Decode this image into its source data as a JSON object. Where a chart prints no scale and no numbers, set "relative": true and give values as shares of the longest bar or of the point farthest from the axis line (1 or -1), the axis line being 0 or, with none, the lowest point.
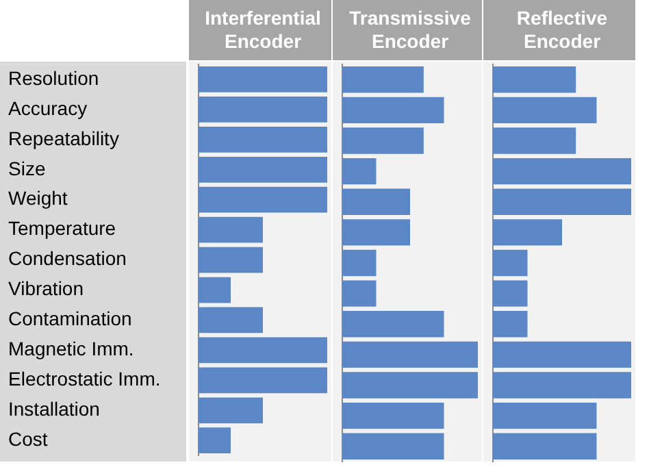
{
  "chart_data": [
    {
      "type": "bar",
      "orientation": "horizontal",
      "relative": true,
      "tick_labels": "y",
      "title": "Interferential Encoder",
      "color": "#5b87c6",
      "categories": [
        "Resolution",
        "Accuracy",
        "Repeatability",
        "Size",
        "Weight",
        "Temperature",
        "Condensation",
        "Vibration",
        "Contamination",
        "Magnetic Imm.",
        "Electrostatic Imm.",
        "Installation",
        "Cost"
      ],
      "values": [
        1,
        1,
        1,
        1,
        1,
        0.5,
        0.5,
        0.25,
        0.5,
        1,
        1,
        0.5,
        0.25
      ]
    },
    {
      "type": "bar",
      "orientation": "horizontal",
      "relative": true,
      "tick_labels": false,
      "title": "Transmissive Encoder",
      "color": "#5b87c6",
      "categories": [
        null,
        null,
        null,
        null,
        null,
        null,
        null,
        null,
        null,
        null,
        null,
        null,
        null
      ],
      "values": [
        0.6,
        0.75,
        0.6,
        0.25,
        0.5,
        0.5,
        0.25,
        0.25,
        0.75,
        1,
        1,
        0.75,
        0.75
      ]
    },
    {
      "type": "bar",
      "orientation": "horizontal",
      "relative": true,
      "tick_labels": false,
      "title": "Reflective Encoder",
      "color": "#5b87c6",
      "categories": [
        null,
        null,
        null,
        null,
        null,
        null,
        null,
        null,
        null,
        null,
        null,
        null,
        null
      ],
      "values": [
        0.6,
        0.75,
        0.6,
        1,
        1,
        0.5,
        0.25,
        0.25,
        0.25,
        1,
        1,
        0.75,
        0.75
      ]
    }
  ]
}
